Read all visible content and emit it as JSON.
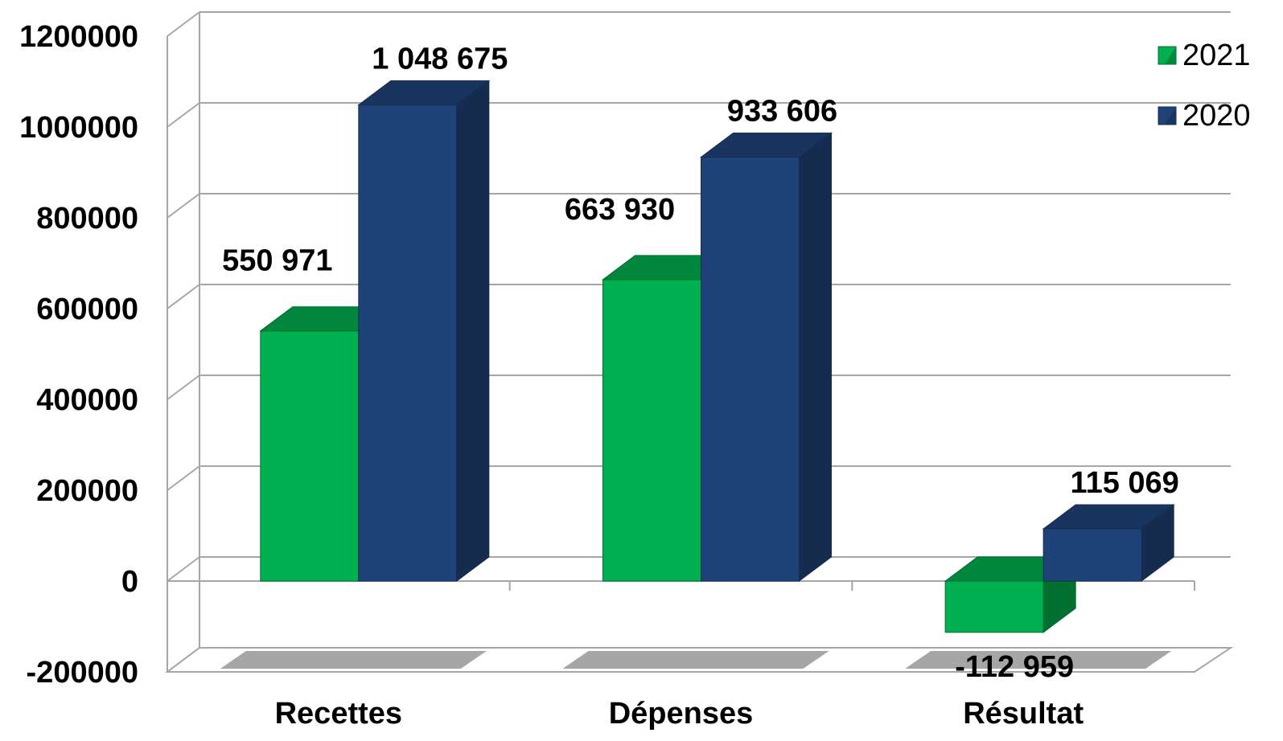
{
  "chart_data": {
    "type": "bar",
    "categories": [
      "Recettes",
      "Dépenses",
      "Résultat"
    ],
    "series": [
      {
        "name": "2021",
        "values": [
          550971,
          663930,
          -112959
        ],
        "labels": [
          "550 971",
          "663 930",
          "-112 959"
        ],
        "color": "#00B050",
        "top_color": "#00873D",
        "side_color": "#006F30"
      },
      {
        "name": "2020",
        "values": [
          1048675,
          933606,
          115069
        ],
        "labels": [
          "1 048 675",
          "933 606",
          "115 069"
        ],
        "color": "#1F4379",
        "top_color": "#19345F",
        "side_color": "#152C4F"
      }
    ],
    "ylim": [
      -200000,
      1200000
    ],
    "yticks": [
      1200000,
      1000000,
      800000,
      600000,
      400000,
      200000,
      0,
      -200000
    ],
    "ytick_labels": [
      "1200000",
      "1000000",
      "800000",
      "600000",
      "400000",
      "200000",
      "0",
      "-200000"
    ],
    "grid": true,
    "legend_position": "top-right",
    "style": "3d-clustered-column",
    "title": "",
    "xlabel": "",
    "ylabel": ""
  }
}
